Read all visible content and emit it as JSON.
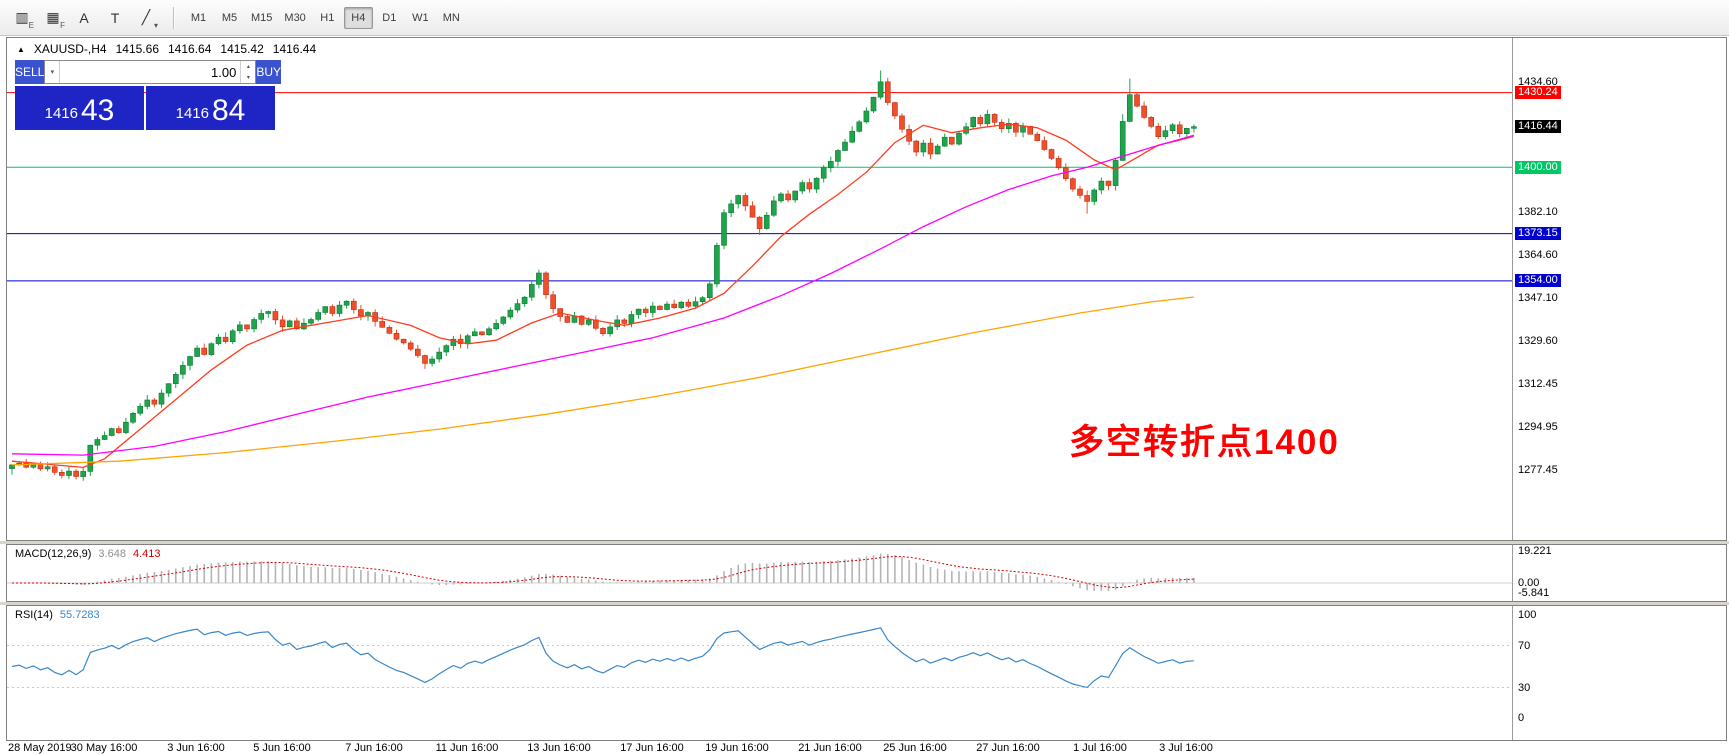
{
  "toolbar": {
    "icon_buttons": [
      {
        "name": "candlestick-chart-icon",
        "glyph": "▥",
        "sub": "E"
      },
      {
        "name": "indicator-grid-icon",
        "glyph": "▦",
        "sub": "F"
      },
      {
        "name": "text-annotation-icon",
        "glyph": "A",
        "sub": ""
      },
      {
        "name": "text-box-icon",
        "glyph": "T",
        "sub": ""
      },
      {
        "name": "trendline-tools-icon",
        "glyph": "╱",
        "sub": "▾"
      }
    ],
    "timeframes": [
      "M1",
      "M5",
      "M15",
      "M30",
      "H1",
      "H4",
      "D1",
      "W1",
      "MN"
    ],
    "active_timeframe": "H4"
  },
  "symbol_bar": {
    "collapse_glyph": "▲",
    "symbol": "XAUUSD-,H4",
    "open": "1415.66",
    "high": "1416.64",
    "low": "1415.42",
    "close": "1416.44"
  },
  "trade_panel": {
    "sell_label": "SELL",
    "buy_label": "BUY",
    "volume": "1.00",
    "sell_price_prefix": "1416",
    "sell_price_big": "43",
    "buy_price_prefix": "1416",
    "buy_price_big": "84",
    "icons": {
      "dropdown": "▾",
      "up": "▴",
      "down": "▾"
    }
  },
  "annotation": {
    "text": "多空转折点1400",
    "color": "#fe0000"
  },
  "price_axis": {
    "plain_ticks": [
      {
        "text": "1434.60",
        "price": 1434.6
      },
      {
        "text": "1382.10",
        "price": 1382.1
      },
      {
        "text": "1364.60",
        "price": 1364.6
      },
      {
        "text": "1347.10",
        "price": 1347.1
      },
      {
        "text": "1329.60",
        "price": 1329.6
      },
      {
        "text": "1312.45",
        "price": 1312.45
      },
      {
        "text": "1294.95",
        "price": 1294.95
      },
      {
        "text": "1277.45",
        "price": 1277.45
      }
    ],
    "tags": [
      {
        "text": "1430.24",
        "price": 1430.24,
        "bg": "#ff0000"
      },
      {
        "text": "1416.44",
        "price": 1416.44,
        "bg": "#000000"
      },
      {
        "text": "1400.00",
        "price": 1400.0,
        "bg": "#00c864"
      },
      {
        "text": "1373.15",
        "price": 1373.15,
        "bg": "#0000d0"
      },
      {
        "text": "1354.00",
        "price": 1354.0,
        "bg": "#0000d0"
      }
    ]
  },
  "chart_data": {
    "type": "candlestick",
    "symbol": "XAUUSD-",
    "timeframe": "H4",
    "horizontal_lines": [
      {
        "price": 1430.24,
        "color": "#ff0000"
      },
      {
        "price": 1400.0,
        "color": "#00c864"
      },
      {
        "price": 1373.15,
        "color": "#0000d0"
      },
      {
        "price": 1354.0,
        "color": "#0000d0"
      }
    ],
    "candle_colors": {
      "up": "#1fa44d",
      "up_border": "#0c7a31",
      "down": "#ef4f2b",
      "down_border": "#bf2f14"
    },
    "candles": {
      "first_open": 1278.0,
      "close": [
        1279.5,
        1280.2,
        1278.6,
        1279.8,
        1277.9,
        1278.8,
        1276.5,
        1275.2,
        1277.0,
        1274.8,
        1276.9,
        1287.5,
        1289.8,
        1291.4,
        1294.2,
        1292.6,
        1296.8,
        1300.4,
        1303.2,
        1305.8,
        1304.1,
        1308.6,
        1312.4,
        1316.2,
        1319.8,
        1323.4,
        1326.8,
        1324.2,
        1328.6,
        1331.2,
        1329.4,
        1333.8,
        1336.2,
        1334.6,
        1338.4,
        1340.8,
        1341.6,
        1338.2,
        1335.4,
        1337.8,
        1334.6,
        1336.9,
        1338.4,
        1341.2,
        1343.6,
        1340.8,
        1344.2,
        1345.8,
        1342.4,
        1339.8,
        1341.2,
        1337.6,
        1335.2,
        1332.8,
        1330.4,
        1328.9,
        1326.4,
        1323.8,
        1320.6,
        1322.4,
        1325.2,
        1327.8,
        1330.4,
        1328.6,
        1331.8,
        1333.4,
        1332.2,
        1334.6,
        1336.8,
        1339.4,
        1342.2,
        1344.8,
        1347.4,
        1352.6,
        1357.2,
        1348.4,
        1342.8,
        1339.6,
        1337.2,
        1339.8,
        1336.4,
        1338.2,
        1334.8,
        1332.6,
        1335.4,
        1338.2,
        1336.8,
        1340.4,
        1342.6,
        1341.2,
        1343.8,
        1342.4,
        1344.6,
        1343.2,
        1345.4,
        1343.8,
        1345.6,
        1347.2,
        1352.8,
        1368.4,
        1381.6,
        1385.2,
        1388.6,
        1384.4,
        1379.8,
        1375.2,
        1380.6,
        1386.4,
        1389.2,
        1386.8,
        1390.4,
        1393.8,
        1391.2,
        1395.6,
        1399.8,
        1402.4,
        1406.8,
        1410.2,
        1414.6,
        1418.4,
        1422.8,
        1428.4,
        1434.6,
        1426.2,
        1420.8,
        1415.4,
        1410.6,
        1406.2,
        1409.8,
        1405.4,
        1408.6,
        1412.2,
        1409.4,
        1413.8,
        1416.4,
        1420.2,
        1417.6,
        1421.4,
        1418.2,
        1415.6,
        1417.8,
        1414.2,
        1416.6,
        1413.4,
        1410.8,
        1407.2,
        1403.6,
        1399.8,
        1395.4,
        1391.2,
        1388.6,
        1386.2,
        1390.8,
        1394.4,
        1392.6,
        1402.8,
        1418.6,
        1429.4,
        1424.8,
        1420.2,
        1416.6,
        1412.4,
        1414.8,
        1417.2,
        1413.6,
        1415.8,
        1416.44
      ],
      "high_overrides": {
        "74": 1358.6,
        "99": 1369.5,
        "100": 1383.0,
        "122": 1439.2,
        "156": 1421.5,
        "157": 1436.0
      },
      "low_overrides": {
        "0": 1275.5,
        "9": 1273.6,
        "58": 1318.4,
        "105": 1372.6,
        "151": 1381.2
      }
    },
    "moving_averages": [
      {
        "name": "fast-ma",
        "color": "#ff3c1e",
        "points": [
          [
            0,
            1281
          ],
          [
            6,
            1279.5
          ],
          [
            10,
            1278.5
          ],
          [
            13,
            1282
          ],
          [
            18,
            1294
          ],
          [
            23,
            1306
          ],
          [
            28,
            1318
          ],
          [
            33,
            1328
          ],
          [
            38,
            1334
          ],
          [
            44,
            1337
          ],
          [
            50,
            1340
          ],
          [
            56,
            1336
          ],
          [
            60,
            1331
          ],
          [
            64,
            1328.5
          ],
          [
            68,
            1330
          ],
          [
            73,
            1337
          ],
          [
            77,
            1341
          ],
          [
            82,
            1338
          ],
          [
            86,
            1336
          ],
          [
            91,
            1339
          ],
          [
            96,
            1343
          ],
          [
            100,
            1349
          ],
          [
            104,
            1360
          ],
          [
            108,
            1372
          ],
          [
            112,
            1381
          ],
          [
            116,
            1389
          ],
          [
            120,
            1398
          ],
          [
            124,
            1410
          ],
          [
            128,
            1417
          ],
          [
            132,
            1414
          ],
          [
            136,
            1416
          ],
          [
            140,
            1417.5
          ],
          [
            144,
            1416
          ],
          [
            148,
            1411
          ],
          [
            152,
            1403
          ],
          [
            155,
            1399
          ],
          [
            158,
            1404
          ],
          [
            161,
            1409
          ],
          [
            164,
            1411
          ],
          [
            166,
            1412.5
          ]
        ]
      },
      {
        "name": "medium-ma",
        "color": "#ff00ff",
        "points": [
          [
            0,
            1284
          ],
          [
            10,
            1283.5
          ],
          [
            20,
            1287
          ],
          [
            30,
            1293
          ],
          [
            40,
            1300
          ],
          [
            50,
            1307
          ],
          [
            60,
            1313
          ],
          [
            70,
            1319
          ],
          [
            80,
            1325
          ],
          [
            90,
            1331
          ],
          [
            100,
            1339
          ],
          [
            108,
            1348
          ],
          [
            115,
            1357
          ],
          [
            122,
            1367
          ],
          [
            128,
            1376
          ],
          [
            134,
            1384
          ],
          [
            140,
            1391
          ],
          [
            146,
            1396.5
          ],
          [
            151,
            1400
          ],
          [
            156,
            1404.5
          ],
          [
            160,
            1408
          ],
          [
            166,
            1413
          ]
        ]
      },
      {
        "name": "slow-ma",
        "color": "#ffa500",
        "points": [
          [
            0,
            1279.5
          ],
          [
            15,
            1281
          ],
          [
            30,
            1284.5
          ],
          [
            45,
            1289
          ],
          [
            60,
            1294
          ],
          [
            75,
            1300
          ],
          [
            90,
            1307
          ],
          [
            105,
            1315
          ],
          [
            120,
            1324
          ],
          [
            135,
            1333
          ],
          [
            150,
            1341
          ],
          [
            160,
            1345.5
          ],
          [
            166,
            1347.5
          ]
        ]
      }
    ],
    "x_axis_labels": [
      {
        "text": "28 May 2019",
        "index": 0
      },
      {
        "text": "30 May 16:00",
        "index": 13
      },
      {
        "text": "3 Jun 16:00",
        "index": 26
      },
      {
        "text": "5 Jun 16:00",
        "index": 38
      },
      {
        "text": "7 Jun 16:00",
        "index": 51
      },
      {
        "text": "11 Jun 16:00",
        "index": 64
      },
      {
        "text": "13 Jun 16:00",
        "index": 77
      },
      {
        "text": "17 Jun 16:00",
        "index": 90
      },
      {
        "text": "19 Jun 16:00",
        "index": 102
      },
      {
        "text": "21 Jun 16:00",
        "index": 115
      },
      {
        "text": "25 Jun 16:00",
        "index": 127
      },
      {
        "text": "27 Jun 16:00",
        "index": 140
      },
      {
        "text": "1 Jul 16:00",
        "index": 153
      },
      {
        "text": "3 Jul 16:00",
        "index": 165
      }
    ],
    "indicators": [
      {
        "name": "MACD",
        "label": "MACD(12,26,9)",
        "main_value": "3.648",
        "signal_value": "4.413",
        "axis_labels": [
          "19.221",
          "0.00",
          "-5.841"
        ],
        "colors": {
          "histogram": "#b4b4b4",
          "signal": "#d40000"
        }
      },
      {
        "name": "RSI",
        "label": "RSI(14)",
        "value": "55.7283",
        "axis_labels": [
          "100",
          "70",
          "30",
          "0"
        ],
        "levels": [
          70,
          30
        ],
        "color": "#3a87c8"
      }
    ]
  }
}
